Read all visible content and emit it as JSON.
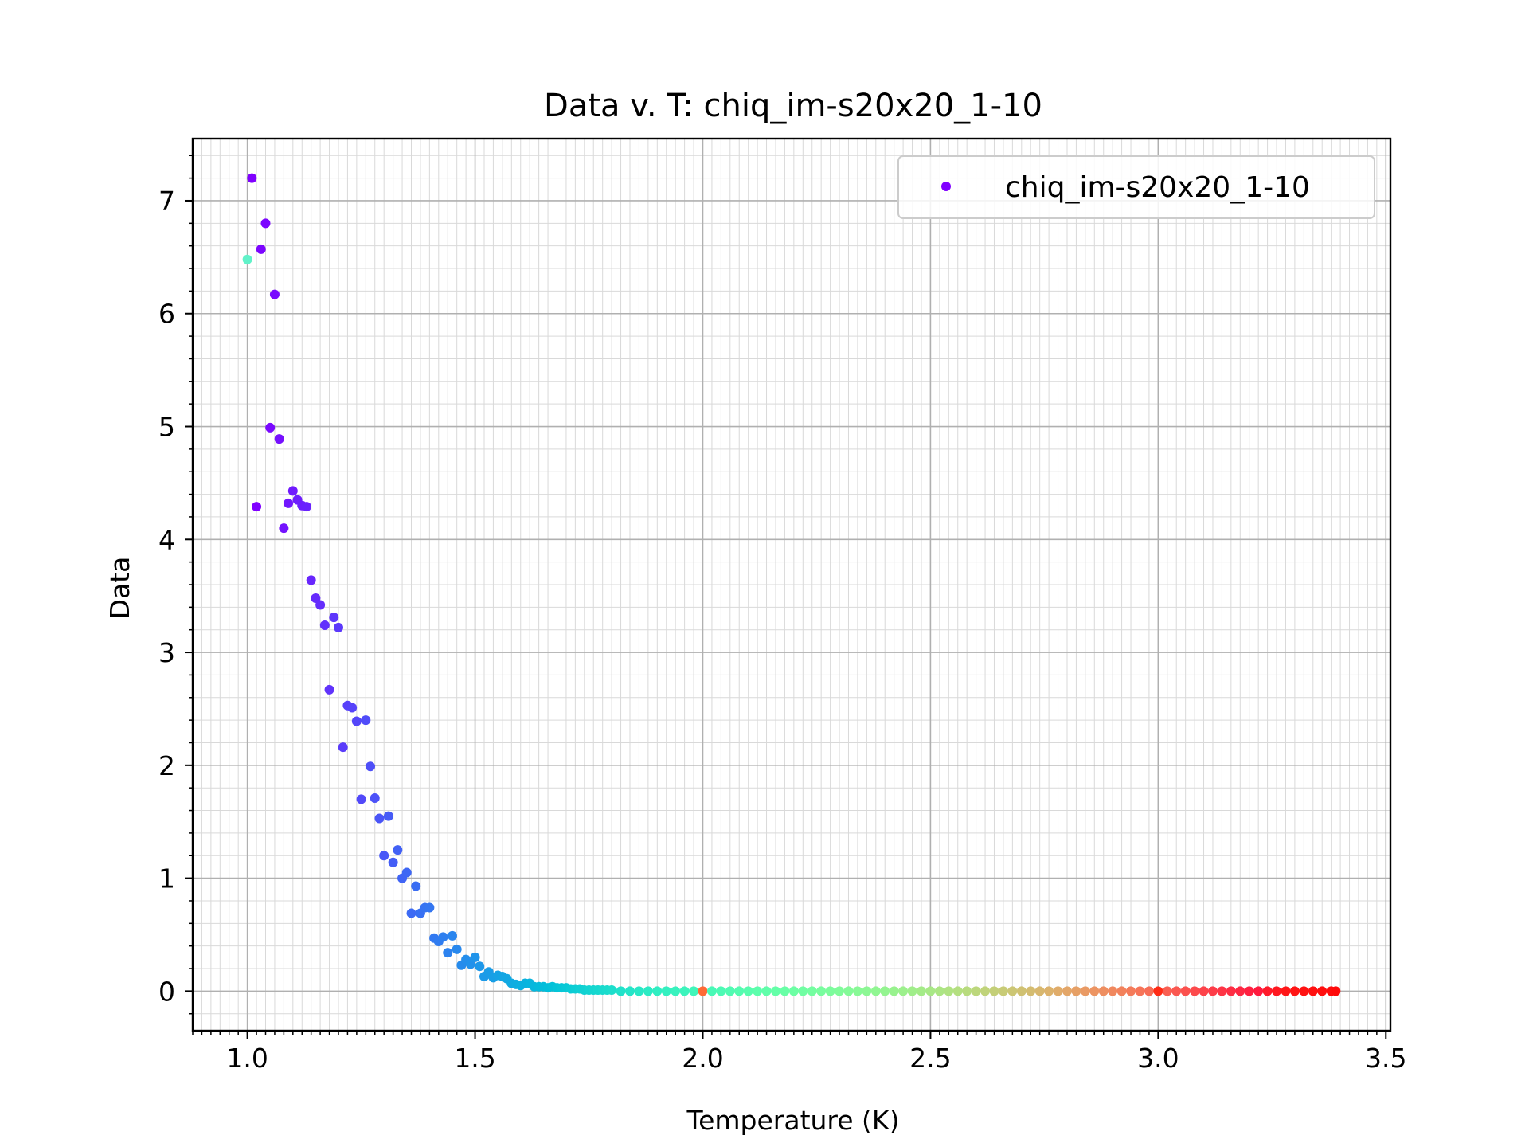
{
  "chart_data": {
    "type": "scatter",
    "title": "Data v. T: chiq_im-s20x20_1-10",
    "xlabel": "Temperature (K)",
    "ylabel": "Data",
    "xlim": [
      0.88,
      3.51
    ],
    "ylim": [
      -0.35,
      7.55
    ],
    "x_ticks": [
      1.0,
      1.5,
      2.0,
      2.5,
      3.0,
      3.5
    ],
    "x_tick_labels": [
      "1.0",
      "1.5",
      "2.0",
      "2.5",
      "3.0",
      "3.5"
    ],
    "y_ticks": [
      0,
      1,
      2,
      3,
      4,
      5,
      6,
      7
    ],
    "y_tick_labels": [
      "0",
      "1",
      "2",
      "3",
      "4",
      "5",
      "6",
      "7"
    ],
    "grid": true,
    "minor_grid": true,
    "colormap": "rainbow",
    "legend": {
      "placement": "top-right",
      "marker_color": "#8000ff"
    },
    "series": [
      {
        "name": "chiq_im-s20x20_1-10",
        "points": [
          [
            1.0,
            6.48,
            "#61f2c9"
          ],
          [
            1.01,
            7.2,
            "#8000ff"
          ],
          [
            1.02,
            4.29,
            "#8000ff"
          ],
          [
            1.03,
            6.57,
            "#7c05ff"
          ],
          [
            1.04,
            6.8,
            "#7c05ff"
          ],
          [
            1.05,
            4.99,
            "#7a08ff"
          ],
          [
            1.06,
            6.17,
            "#780cfe"
          ],
          [
            1.07,
            4.89,
            "#7610fe"
          ],
          [
            1.08,
            4.1,
            "#7413fe"
          ],
          [
            1.09,
            4.32,
            "#7216fe"
          ],
          [
            1.1,
            4.43,
            "#7019fe"
          ],
          [
            1.11,
            4.35,
            "#6e1dfd"
          ],
          [
            1.12,
            4.3,
            "#6c20fd"
          ],
          [
            1.13,
            4.29,
            "#6a23fd"
          ],
          [
            1.14,
            3.64,
            "#6826fd"
          ],
          [
            1.15,
            3.48,
            "#662afc"
          ],
          [
            1.16,
            3.42,
            "#642dfc"
          ],
          [
            1.17,
            3.24,
            "#6230fc"
          ],
          [
            1.19,
            3.31,
            "#5e36fb"
          ],
          [
            1.18,
            2.67,
            "#6033fb"
          ],
          [
            1.2,
            3.22,
            "#5c39fb"
          ],
          [
            1.21,
            2.16,
            "#5a3cfa"
          ],
          [
            1.22,
            2.53,
            "#5840fa"
          ],
          [
            1.23,
            2.51,
            "#5643fa"
          ],
          [
            1.24,
            2.39,
            "#5446f9"
          ],
          [
            1.26,
            2.4,
            "#504cf9"
          ],
          [
            1.25,
            1.7,
            "#5249f9"
          ],
          [
            1.27,
            1.99,
            "#4e4ff8"
          ],
          [
            1.28,
            1.71,
            "#4c52f8"
          ],
          [
            1.29,
            1.53,
            "#4a55f7"
          ],
          [
            1.3,
            1.2,
            "#4858f7"
          ],
          [
            1.31,
            1.55,
            "#465bf6"
          ],
          [
            1.32,
            1.14,
            "#445ef6"
          ],
          [
            1.33,
            1.25,
            "#4261f5"
          ],
          [
            1.34,
            1.0,
            "#4064f5"
          ],
          [
            1.35,
            1.05,
            "#3e67f4"
          ],
          [
            1.36,
            0.69,
            "#3c6af4"
          ],
          [
            1.37,
            0.93,
            "#3a6df3"
          ],
          [
            1.38,
            0.69,
            "#3870f3"
          ],
          [
            1.39,
            0.74,
            "#3673f2"
          ],
          [
            1.4,
            0.74,
            "#3476f1"
          ],
          [
            1.41,
            0.47,
            "#3279f1"
          ],
          [
            1.42,
            0.44,
            "#307cf0"
          ],
          [
            1.43,
            0.48,
            "#2e7fef"
          ],
          [
            1.44,
            0.34,
            "#2c82ef"
          ],
          [
            1.45,
            0.49,
            "#2a85ee"
          ],
          [
            1.46,
            0.37,
            "#2888ed"
          ],
          [
            1.47,
            0.23,
            "#268bec"
          ],
          [
            1.48,
            0.28,
            "#248eec"
          ],
          [
            1.49,
            0.24,
            "#2291eb"
          ],
          [
            1.5,
            0.3,
            "#2094ea"
          ],
          [
            1.51,
            0.22,
            "#1e97e9"
          ],
          [
            1.52,
            0.13,
            "#1c9ae8"
          ],
          [
            1.53,
            0.17,
            "#1a9ce7"
          ],
          [
            1.54,
            0.12,
            "#189fe6"
          ],
          [
            1.55,
            0.14,
            "#16a2e5"
          ],
          [
            1.56,
            0.13,
            "#14a5e4"
          ],
          [
            1.57,
            0.11,
            "#12a7e3"
          ],
          [
            1.58,
            0.07,
            "#10aae2"
          ],
          [
            1.59,
            0.06,
            "#0eade1"
          ],
          [
            1.6,
            0.05,
            "#0cb0e0"
          ],
          [
            1.61,
            0.07,
            "#0ab2df"
          ],
          [
            1.62,
            0.07,
            "#08b5de"
          ],
          [
            1.63,
            0.04,
            "#06b7dd"
          ],
          [
            1.64,
            0.04,
            "#04badc"
          ],
          [
            1.65,
            0.04,
            "#02bcdb"
          ],
          [
            1.66,
            0.03,
            "#00bfda"
          ],
          [
            1.67,
            0.04,
            "#02c1d9"
          ],
          [
            1.68,
            0.03,
            "#04c4d8"
          ],
          [
            1.69,
            0.03,
            "#06c6d7"
          ],
          [
            1.7,
            0.03,
            "#08c8d6"
          ],
          [
            1.71,
            0.02,
            "#0acbd5"
          ],
          [
            1.72,
            0.02,
            "#0ccdd4"
          ],
          [
            1.73,
            0.02,
            "#0ecfd3"
          ],
          [
            1.74,
            0.01,
            "#10d1d2"
          ],
          [
            1.75,
            0.01,
            "#12d4d1"
          ],
          [
            1.76,
            0.01,
            "#14d6d0"
          ],
          [
            1.77,
            0.01,
            "#16d8cf"
          ],
          [
            1.78,
            0.01,
            "#18dace"
          ],
          [
            1.79,
            0.01,
            "#1adccd"
          ],
          [
            1.8,
            0.01,
            "#1cdecc"
          ],
          [
            1.82,
            0.0,
            "#20e2ca"
          ],
          [
            1.84,
            0.0,
            "#24e5c8"
          ],
          [
            1.86,
            0.0,
            "#28e8c6"
          ],
          [
            1.88,
            0.0,
            "#2cebc4"
          ],
          [
            1.9,
            0.0,
            "#30eec2"
          ],
          [
            1.92,
            0.0,
            "#34f0c0"
          ],
          [
            1.94,
            0.0,
            "#38f2be"
          ],
          [
            1.96,
            0.0,
            "#3cf4bc"
          ],
          [
            1.98,
            0.0,
            "#40f6ba"
          ],
          [
            2.0,
            0.0,
            "#ff6a36"
          ],
          [
            2.02,
            0.0,
            "#48f9b6"
          ],
          [
            2.04,
            0.0,
            "#4cfab4"
          ],
          [
            2.06,
            0.0,
            "#50fbb2"
          ],
          [
            2.08,
            0.0,
            "#54fcb0"
          ],
          [
            2.1,
            0.0,
            "#58fdae"
          ],
          [
            2.12,
            0.0,
            "#5cfeac"
          ],
          [
            2.14,
            0.0,
            "#60feaa"
          ],
          [
            2.16,
            0.0,
            "#64ffa8"
          ],
          [
            2.18,
            0.0,
            "#68ffa6"
          ],
          [
            2.2,
            0.0,
            "#6cffa4"
          ],
          [
            2.22,
            0.0,
            "#70fea2"
          ],
          [
            2.24,
            0.0,
            "#74fea0"
          ],
          [
            2.26,
            0.0,
            "#78fd9e"
          ],
          [
            2.28,
            0.0,
            "#7cfc9c"
          ],
          [
            2.3,
            0.0,
            "#80fb9a"
          ],
          [
            2.32,
            0.0,
            "#84fa98"
          ],
          [
            2.34,
            0.0,
            "#88f996"
          ],
          [
            2.36,
            0.0,
            "#8cf794"
          ],
          [
            2.38,
            0.0,
            "#90f692"
          ],
          [
            2.4,
            0.0,
            "#94f490"
          ],
          [
            2.42,
            0.0,
            "#98f28e"
          ],
          [
            2.44,
            0.0,
            "#9cf08c"
          ],
          [
            2.46,
            0.0,
            "#a0ee8a"
          ],
          [
            2.48,
            0.0,
            "#a4eb88"
          ],
          [
            2.5,
            0.0,
            "#a8e886"
          ],
          [
            2.52,
            0.0,
            "#ace584"
          ],
          [
            2.54,
            0.0,
            "#b0e282"
          ],
          [
            2.56,
            0.0,
            "#b4df80"
          ],
          [
            2.58,
            0.0,
            "#b8db7e"
          ],
          [
            2.6,
            0.0,
            "#bcd77c"
          ],
          [
            2.62,
            0.0,
            "#c0d37a"
          ],
          [
            2.64,
            0.0,
            "#c4cf78"
          ],
          [
            2.66,
            0.0,
            "#c8cb76"
          ],
          [
            2.68,
            0.0,
            "#ccc674"
          ],
          [
            2.7,
            0.0,
            "#d0c172"
          ],
          [
            2.72,
            0.0,
            "#d4bc70"
          ],
          [
            2.74,
            0.0,
            "#d8b76e"
          ],
          [
            2.76,
            0.0,
            "#dcb26c"
          ],
          [
            2.78,
            0.0,
            "#e0ac6a"
          ],
          [
            2.8,
            0.0,
            "#e3a668"
          ],
          [
            2.82,
            0.0,
            "#e6a066"
          ],
          [
            2.84,
            0.0,
            "#e99a64"
          ],
          [
            2.86,
            0.0,
            "#ec9462"
          ],
          [
            2.88,
            0.0,
            "#ee8e60"
          ],
          [
            2.9,
            0.0,
            "#f0885e"
          ],
          [
            2.92,
            0.0,
            "#f2825c"
          ],
          [
            2.94,
            0.0,
            "#f47b5a"
          ],
          [
            2.96,
            0.0,
            "#f67458"
          ],
          [
            2.98,
            0.0,
            "#f76d56"
          ],
          [
            3.0,
            0.0,
            "#ff2b15"
          ],
          [
            3.02,
            0.0,
            "#f95f52"
          ],
          [
            3.04,
            0.0,
            "#fa5850"
          ],
          [
            3.06,
            0.0,
            "#fb514e"
          ],
          [
            3.08,
            0.0,
            "#fc4a4c"
          ],
          [
            3.1,
            0.0,
            "#fd434a"
          ],
          [
            3.12,
            0.0,
            "#fd3c48"
          ],
          [
            3.14,
            0.0,
            "#fe3546"
          ],
          [
            3.16,
            0.0,
            "#fe2e44"
          ],
          [
            3.18,
            0.0,
            "#fe2742"
          ],
          [
            3.2,
            0.0,
            "#ff2040"
          ],
          [
            3.22,
            0.0,
            "#ff1a3e"
          ],
          [
            3.24,
            0.0,
            "#ff1a2a"
          ],
          [
            3.26,
            0.0,
            "#ff1820"
          ],
          [
            3.28,
            0.0,
            "#ff1618"
          ],
          [
            3.3,
            0.0,
            "#ff1414"
          ],
          [
            3.32,
            0.0,
            "#ff1212"
          ],
          [
            3.34,
            0.0,
            "#ff1010"
          ],
          [
            3.36,
            0.0,
            "#ff0e0e"
          ],
          [
            3.38,
            0.0,
            "#ff0c0c"
          ],
          [
            3.39,
            0.0,
            "#ff0a0a"
          ]
        ]
      }
    ]
  }
}
